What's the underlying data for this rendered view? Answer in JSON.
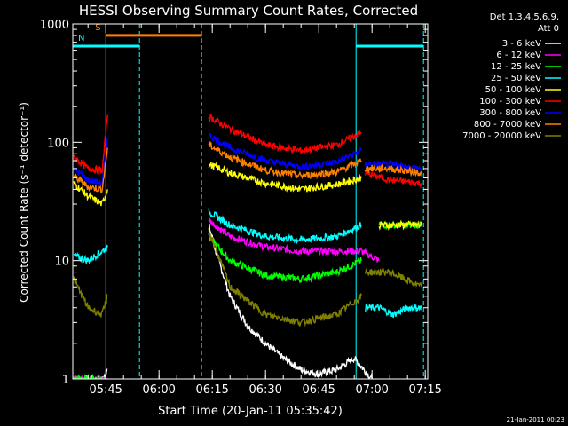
{
  "chart_data": {
    "type": "line",
    "title": "HESSI Observing Summary Count Rates, Corrected",
    "ylabel": "Corrected Count Rate (s⁻¹ detector⁻¹)",
    "xlabel": "Start Time (20-Jan-11 05:35:42)",
    "y_scale": "log",
    "ylim": [
      1,
      1000
    ],
    "xlim": [
      "05:35:42",
      "07:15:42"
    ],
    "x_ticks": [
      "05:45",
      "06:00",
      "06:15",
      "06:30",
      "06:45",
      "07:00",
      "07:15"
    ],
    "y_ticks": [
      "1",
      "10",
      "100",
      "1000"
    ],
    "grid": false,
    "legend": {
      "placement": "right",
      "header": [
        "Det 1,3,4,5,6,9,",
        "Att 0"
      ],
      "entries": [
        {
          "name": "3 - 6 keV",
          "color": "#ffffff"
        },
        {
          "name": "6 - 12 keV",
          "color": "#ff00ff"
        },
        {
          "name": "12 - 25 keV",
          "color": "#00ff00"
        },
        {
          "name": "25 - 50 keV",
          "color": "#00ffff"
        },
        {
          "name": "50 - 100 keV",
          "color": "#ffff00"
        },
        {
          "name": "100 - 300 keV",
          "color": "#ff0000"
        },
        {
          "name": "300 - 800 keV",
          "color": "#0000ff"
        },
        {
          "name": "800 - 7000 keV",
          "color": "#ff8000"
        },
        {
          "name": "7000 - 20000 keV",
          "color": "#808000"
        }
      ]
    },
    "annotations": {
      "segments": [
        {
          "label": "S",
          "start": "05:45:00",
          "end": "06:12:00",
          "level": 800,
          "color": "#ff8000"
        },
        {
          "label": "N",
          "start": "05:35:42",
          "end": "05:54:30",
          "level": 650,
          "color": "#00ffff"
        },
        {
          "label": "",
          "start": "06:55:30",
          "end": "07:14:30",
          "level": 650,
          "color": "#00ffff"
        }
      ],
      "vlines": [
        {
          "time": "05:45:00",
          "color": "#ff8000",
          "style": "solid"
        },
        {
          "time": "05:54:30",
          "color": "#00ffff",
          "style": "dashed"
        },
        {
          "time": "06:12:00",
          "color": "#ff8000",
          "style": "dashed"
        },
        {
          "time": "06:55:30",
          "color": "#00ffff",
          "style": "solid"
        },
        {
          "time": "07:14:30",
          "color": "#00ffff",
          "style": "dashed"
        }
      ]
    },
    "series": [
      {
        "name": "3 - 6 keV",
        "color": "#ffffff",
        "segments": [
          {
            "x": [
              "05:35:42",
              "05:40",
              "05:44",
              "05:45:30"
            ],
            "y": [
              1,
              1,
              1,
              1.2
            ]
          },
          {
            "x": [
              "06:14",
              "06:16",
              "06:20",
              "06:25",
              "06:30",
              "06:35",
              "06:40",
              "06:45",
              "06:50",
              "06:55",
              "07:00"
            ],
            "y": [
              20,
              12,
              5,
              2.8,
              2,
              1.5,
              1.2,
              1.1,
              1.2,
              1.5,
              1
            ]
          }
        ]
      },
      {
        "name": "6 - 12 keV",
        "color": "#ff00ff",
        "segments": [
          {
            "x": [
              "05:35:42",
              "05:40",
              "05:45:30"
            ],
            "y": [
              1,
              1,
              1
            ]
          },
          {
            "x": [
              "06:14",
              "06:20",
              "06:30",
              "06:40",
              "06:50",
              "06:57",
              "07:02"
            ],
            "y": [
              22,
              16,
              13,
              12,
              12,
              12,
              10
            ]
          }
        ]
      },
      {
        "name": "12 - 25 keV",
        "color": "#00ff00",
        "segments": [
          {
            "x": [
              "05:35:42",
              "05:40",
              "05:45:30"
            ],
            "y": [
              1,
              1,
              1
            ]
          },
          {
            "x": [
              "06:14",
              "06:20",
              "06:30",
              "06:40",
              "06:50",
              "06:57"
            ],
            "y": [
              16,
              10,
              7.5,
              7,
              8,
              10
            ]
          },
          {
            "x": [
              "07:02",
              "07:14"
            ],
            "y": [
              20,
              20
            ]
          }
        ]
      },
      {
        "name": "25 - 50 keV",
        "color": "#00ffff",
        "segments": [
          {
            "x": [
              "05:36",
              "05:40",
              "05:44",
              "05:45:30"
            ],
            "y": [
              11,
              10,
              12,
              13
            ]
          },
          {
            "x": [
              "06:14",
              "06:20",
              "06:30",
              "06:40",
              "06:50",
              "06:57"
            ],
            "y": [
              26,
              20,
              16,
              15,
              16,
              20
            ]
          },
          {
            "x": [
              "06:58",
              "07:02",
              "07:06",
              "07:10",
              "07:14"
            ],
            "y": [
              4,
              4,
              3.5,
              4,
              4
            ]
          }
        ]
      },
      {
        "name": "50 - 100 keV",
        "color": "#ffff00",
        "segments": [
          {
            "x": [
              "05:36",
              "05:40",
              "05:44",
              "05:45:30"
            ],
            "y": [
              45,
              35,
              30,
              40
            ]
          },
          {
            "x": [
              "06:14",
              "06:20",
              "06:30",
              "06:40",
              "06:50",
              "06:57"
            ],
            "y": [
              65,
              55,
              45,
              40,
              44,
              50
            ]
          },
          {
            "x": [
              "07:02",
              "07:14"
            ],
            "y": [
              20,
              20
            ]
          }
        ]
      },
      {
        "name": "100 - 300 keV",
        "color": "#ff0000",
        "segments": [
          {
            "x": [
              "05:36",
              "05:40",
              "05:44",
              "05:45:30"
            ],
            "y": [
              75,
              60,
              58,
              170
            ]
          },
          {
            "x": [
              "06:14",
              "06:20",
              "06:30",
              "06:40",
              "06:50",
              "06:57"
            ],
            "y": [
              165,
              130,
              95,
              85,
              95,
              120
            ]
          },
          {
            "x": [
              "06:58",
              "07:05",
              "07:14"
            ],
            "y": [
              55,
              48,
              45
            ]
          }
        ]
      },
      {
        "name": "300 - 800 keV",
        "color": "#0000ff",
        "segments": [
          {
            "x": [
              "05:36",
              "05:40",
              "05:44",
              "05:45:30"
            ],
            "y": [
              60,
              48,
              45,
              110
            ]
          },
          {
            "x": [
              "06:14",
              "06:20",
              "06:30",
              "06:40",
              "06:50",
              "06:57"
            ],
            "y": [
              115,
              90,
              70,
              62,
              68,
              85
            ]
          },
          {
            "x": [
              "06:58",
              "07:05",
              "07:14"
            ],
            "y": [
              65,
              65,
              60
            ]
          }
        ]
      },
      {
        "name": "800 - 7000 keV",
        "color": "#ff8000",
        "segments": [
          {
            "x": [
              "05:36",
              "05:40",
              "05:44",
              "05:45:30"
            ],
            "y": [
              52,
              42,
              40,
              90
            ]
          },
          {
            "x": [
              "06:14",
              "06:20",
              "06:30",
              "06:40",
              "06:50",
              "06:57"
            ],
            "y": [
              95,
              75,
              58,
              52,
              56,
              70
            ]
          },
          {
            "x": [
              "06:58",
              "07:05",
              "07:14"
            ],
            "y": [
              60,
              60,
              55
            ]
          }
        ]
      },
      {
        "name": "7000 - 20000 keV",
        "color": "#808000",
        "segments": [
          {
            "x": [
              "05:36",
              "05:40",
              "05:44",
              "05:45:30"
            ],
            "y": [
              7,
              4,
              3.5,
              5
            ]
          },
          {
            "x": [
              "06:14",
              "06:20",
              "06:30",
              "06:40",
              "06:50",
              "06:57"
            ],
            "y": [
              18,
              6,
              3.5,
              3,
              3.5,
              5
            ]
          },
          {
            "x": [
              "06:58",
              "07:05",
              "07:14"
            ],
            "y": [
              8,
              8,
              6
            ]
          }
        ]
      }
    ],
    "footer": "21-Jan-2011 00:23"
  }
}
